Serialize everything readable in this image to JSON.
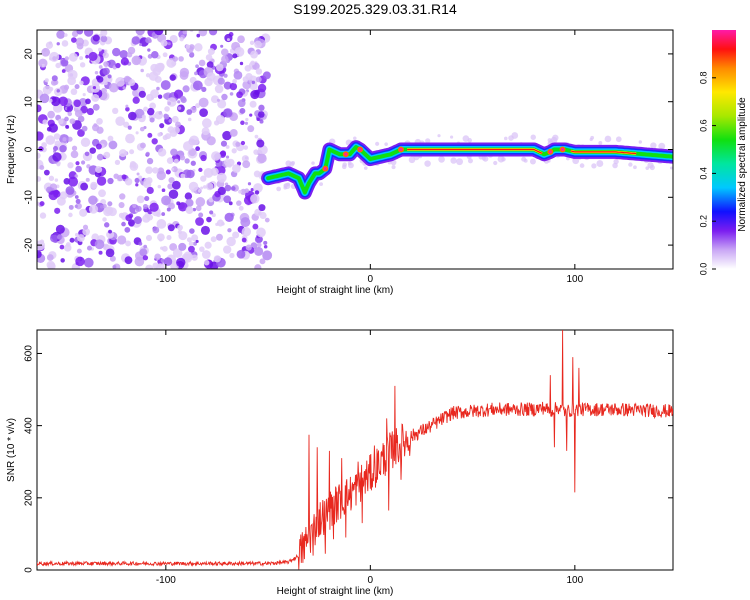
{
  "title": "S199.2025.329.03.31.R14",
  "colors": {
    "snr_line": "#e8281f",
    "axis": "#000000",
    "scatter": "#7a2df0"
  },
  "chart_data": [
    {
      "type": "heatmap",
      "name": "spectrogram",
      "xlabel": "Height of straight line (km)",
      "ylabel": "Frequency (Hz)",
      "xlim": [
        -163,
        148
      ],
      "ylim": [
        -25,
        25
      ],
      "xticks": [
        -100,
        0,
        100
      ],
      "xtick_labels": [
        "-100",
        "0",
        "100"
      ],
      "yticks": [
        -20,
        -10,
        0,
        10,
        20
      ],
      "ytick_labels": [
        "-20",
        "-10",
        "0",
        "10",
        "20"
      ],
      "noise_region_x": [
        -163,
        -50
      ],
      "signal_track": {
        "x": [
          -50,
          -45,
          -40,
          -35,
          -32,
          -30,
          -27,
          -25,
          -22,
          -20,
          -15,
          -10,
          -7,
          -5,
          0,
          5,
          10,
          15,
          20,
          40,
          60,
          80,
          85,
          88,
          90,
          95,
          100,
          120,
          148
        ],
        "freq": [
          -6,
          -5.5,
          -5,
          -6,
          -9,
          -7,
          -5,
          -5,
          -4,
          0,
          -1,
          -1,
          0.5,
          0,
          -2,
          -1.5,
          -1,
          0,
          0,
          0,
          0,
          0,
          -1,
          -0.5,
          0,
          0,
          -0.5,
          -0.5,
          -1.5
        ]
      },
      "colorbar": {
        "label": "Normalized spectral amplitude",
        "ticks": [
          0.0,
          0.2,
          0.4,
          0.6,
          0.8
        ],
        "tick_labels": [
          "0.0",
          "0.2",
          "0.4",
          "0.6",
          "0.8"
        ],
        "range": [
          0,
          1
        ]
      }
    },
    {
      "type": "line",
      "name": "snr",
      "xlabel": "Height of straight line (km)",
      "ylabel": "SNR (10 * v/v)",
      "xlim": [
        -163,
        148
      ],
      "ylim": [
        0,
        665
      ],
      "xticks": [
        -100,
        0,
        100
      ],
      "xtick_labels": [
        "-100",
        "0",
        "100"
      ],
      "yticks": [
        0,
        200,
        400,
        600
      ],
      "ytick_labels": [
        "0",
        "200",
        "400",
        "600"
      ],
      "envelope": {
        "x": [
          -163,
          -50,
          -40,
          -35,
          -30,
          -25,
          -20,
          -15,
          -10,
          -5,
          0,
          5,
          10,
          20,
          30,
          40,
          60,
          80,
          85,
          88,
          92,
          95,
          100,
          110,
          120,
          148
        ],
        "y": [
          18,
          18,
          22,
          40,
          90,
          140,
          165,
          190,
          210,
          240,
          265,
          300,
          330,
          370,
          400,
          435,
          445,
          445,
          450,
          440,
          450,
          440,
          445,
          445,
          445,
          440
        ]
      },
      "spikes": [
        {
          "x": -30,
          "y": 375
        },
        {
          "x": -28,
          "y": 40
        },
        {
          "x": -26,
          "y": 340
        },
        {
          "x": -22,
          "y": 45
        },
        {
          "x": -20,
          "y": 330
        },
        {
          "x": -18,
          "y": 85
        },
        {
          "x": -14,
          "y": 310
        },
        {
          "x": -12,
          "y": 90
        },
        {
          "x": -6,
          "y": 300
        },
        {
          "x": -4,
          "y": 130
        },
        {
          "x": 2,
          "y": 345
        },
        {
          "x": 8,
          "y": 420
        },
        {
          "x": 9,
          "y": 165
        },
        {
          "x": 12,
          "y": 510
        },
        {
          "x": 15,
          "y": 250
        },
        {
          "x": 94,
          "y": 665
        },
        {
          "x": 96,
          "y": 330
        },
        {
          "x": 99,
          "y": 590
        },
        {
          "x": 100,
          "y": 215
        },
        {
          "x": 102,
          "y": 560
        },
        {
          "x": 88,
          "y": 540
        },
        {
          "x": 90,
          "y": 340
        }
      ],
      "noise_amplitude": 12
    }
  ]
}
